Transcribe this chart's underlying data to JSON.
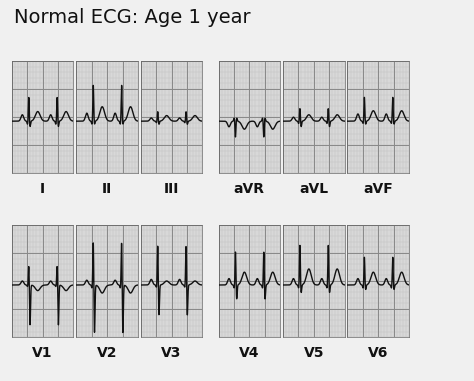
{
  "title": "Normal ECG: Age 1 year",
  "title_fontsize": 14,
  "title_fontweight": "normal",
  "background_color": "#f0f0f0",
  "grid_major_color": "#888888",
  "grid_minor_color": "#bbbbbb",
  "ecg_color": "#111111",
  "ecg_linewidth": 1.0,
  "box_bg": "#d8d8d8",
  "labels_row1": [
    "I",
    "II",
    "III",
    "aVR",
    "aVL",
    "aVF"
  ],
  "labels_row2": [
    "V1",
    "V2",
    "V3",
    "V4",
    "V5",
    "V6"
  ],
  "label_fontsize": 10,
  "label_fontweight": "bold",
  "fig_width": 4.74,
  "fig_height": 3.81,
  "fig_dpi": 100
}
